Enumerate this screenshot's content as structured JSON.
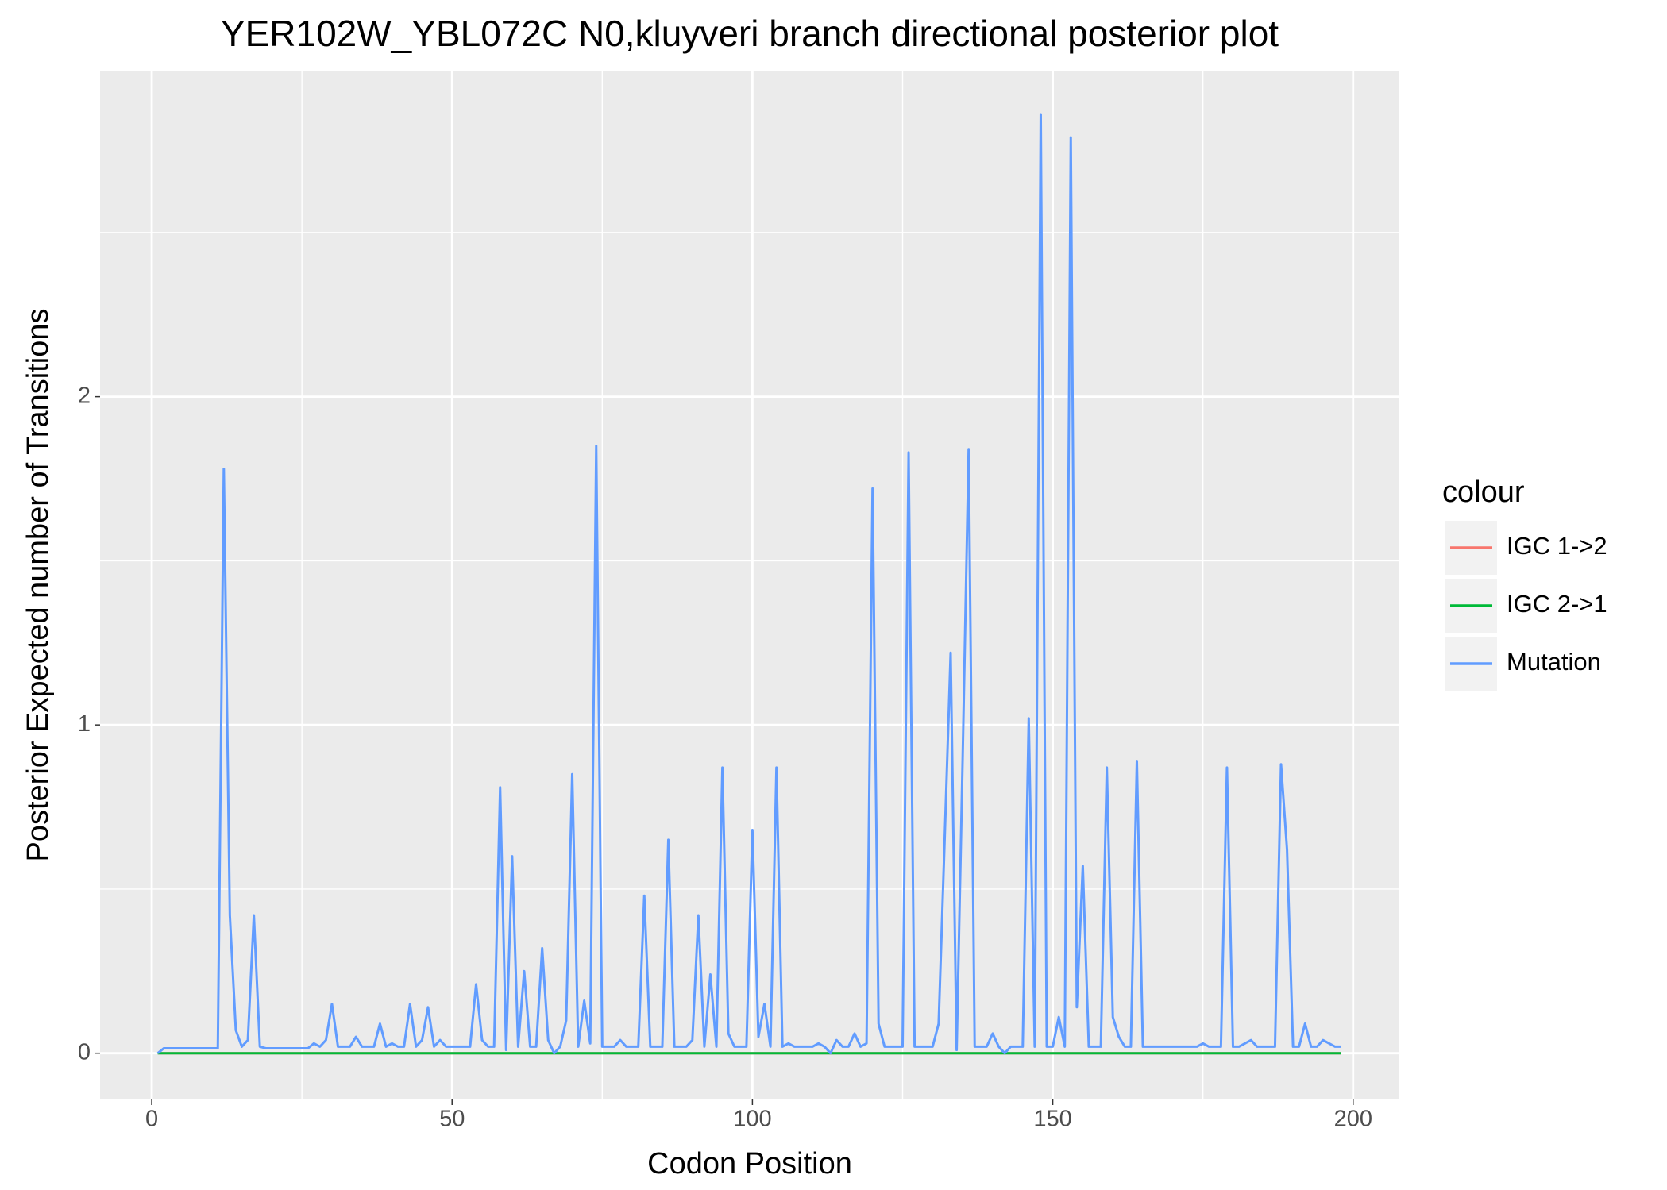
{
  "chart_data": {
    "type": "line",
    "title": "YER102W_YBL072C N0,kluyveri branch directional posterior plot",
    "x_label": "Codon Position",
    "y_label": "Posterior Expected number of Transitions",
    "legend_title": "colour",
    "legend_position": "right",
    "grid": true,
    "xlim": [
      -8.6,
      207.7
    ],
    "ylim": [
      -0.141,
      2.993
    ],
    "xticks": [
      0,
      50,
      100,
      150,
      200
    ],
    "yticks": [
      0,
      1,
      2
    ],
    "x": [
      1,
      2,
      3,
      4,
      5,
      6,
      7,
      8,
      9,
      10,
      11,
      12,
      13,
      14,
      15,
      16,
      17,
      18,
      19,
      20,
      21,
      22,
      23,
      24,
      25,
      26,
      27,
      28,
      29,
      30,
      31,
      32,
      33,
      34,
      35,
      36,
      37,
      38,
      39,
      40,
      41,
      42,
      43,
      44,
      45,
      46,
      47,
      48,
      49,
      50,
      51,
      52,
      53,
      54,
      55,
      56,
      57,
      58,
      59,
      60,
      61,
      62,
      63,
      64,
      65,
      66,
      67,
      68,
      69,
      70,
      71,
      72,
      73,
      74,
      75,
      76,
      77,
      78,
      79,
      80,
      81,
      82,
      83,
      84,
      85,
      86,
      87,
      88,
      89,
      90,
      91,
      92,
      93,
      94,
      95,
      96,
      97,
      98,
      99,
      100,
      101,
      102,
      103,
      104,
      105,
      106,
      107,
      108,
      109,
      110,
      111,
      112,
      113,
      114,
      115,
      116,
      117,
      118,
      119,
      120,
      121,
      122,
      123,
      124,
      125,
      126,
      127,
      128,
      129,
      130,
      131,
      132,
      133,
      134,
      135,
      136,
      137,
      138,
      139,
      140,
      141,
      142,
      143,
      144,
      145,
      146,
      147,
      148,
      149,
      150,
      151,
      152,
      153,
      154,
      155,
      156,
      157,
      158,
      159,
      160,
      161,
      162,
      163,
      164,
      165,
      166,
      167,
      168,
      169,
      170,
      171,
      172,
      173,
      174,
      175,
      176,
      177,
      178,
      179,
      180,
      181,
      182,
      183,
      184,
      185,
      186,
      187,
      188,
      189,
      190,
      191,
      192,
      193,
      194,
      195,
      196,
      197,
      198
    ],
    "series": [
      {
        "name": "IGC 1->2",
        "color": "#F8766D",
        "values": [
          0,
          0,
          0,
          0,
          0,
          0,
          0,
          0,
          0,
          0,
          0,
          0,
          0,
          0,
          0,
          0,
          0,
          0,
          0,
          0,
          0,
          0,
          0,
          0,
          0,
          0,
          0,
          0,
          0,
          0,
          0,
          0,
          0,
          0,
          0,
          0,
          0,
          0,
          0,
          0,
          0,
          0,
          0,
          0,
          0,
          0,
          0,
          0,
          0,
          0,
          0,
          0,
          0,
          0,
          0,
          0,
          0,
          0,
          0,
          0,
          0,
          0,
          0,
          0,
          0,
          0,
          0,
          0,
          0,
          0,
          0,
          0,
          0,
          0,
          0,
          0,
          0,
          0,
          0,
          0,
          0,
          0,
          0,
          0,
          0,
          0,
          0,
          0,
          0,
          0,
          0,
          0,
          0,
          0,
          0,
          0,
          0,
          0,
          0,
          0,
          0,
          0,
          0,
          0,
          0,
          0,
          0,
          0,
          0,
          0,
          0,
          0,
          0,
          0,
          0,
          0,
          0,
          0,
          0,
          0,
          0,
          0,
          0,
          0,
          0,
          0,
          0,
          0,
          0,
          0,
          0,
          0,
          0,
          0,
          0,
          0,
          0,
          0,
          0,
          0,
          0,
          0,
          0,
          0,
          0,
          0,
          0,
          0,
          0,
          0,
          0,
          0,
          0,
          0,
          0,
          0,
          0,
          0,
          0,
          0,
          0,
          0,
          0,
          0,
          0,
          0,
          0,
          0,
          0,
          0,
          0,
          0,
          0,
          0,
          0,
          0,
          0,
          0,
          0,
          0,
          0,
          0,
          0,
          0,
          0,
          0,
          0,
          0,
          0,
          0,
          0,
          0,
          0,
          0,
          0,
          0,
          0,
          0
        ]
      },
      {
        "name": "IGC 2->1",
        "color": "#00BA38",
        "values": [
          0,
          0,
          0,
          0,
          0,
          0,
          0,
          0,
          0,
          0,
          0,
          0,
          0,
          0,
          0,
          0,
          0,
          0,
          0,
          0,
          0,
          0,
          0,
          0,
          0,
          0,
          0,
          0,
          0,
          0,
          0,
          0,
          0,
          0,
          0,
          0,
          0,
          0,
          0,
          0,
          0,
          0,
          0,
          0,
          0,
          0,
          0,
          0,
          0,
          0,
          0,
          0,
          0,
          0,
          0,
          0,
          0,
          0,
          0,
          0,
          0,
          0,
          0,
          0,
          0,
          0,
          0,
          0,
          0,
          0,
          0,
          0,
          0,
          0,
          0,
          0,
          0,
          0,
          0,
          0,
          0,
          0,
          0,
          0,
          0,
          0,
          0,
          0,
          0,
          0,
          0,
          0,
          0,
          0,
          0,
          0,
          0,
          0,
          0,
          0,
          0,
          0,
          0,
          0,
          0,
          0,
          0,
          0,
          0,
          0,
          0,
          0,
          0,
          0,
          0,
          0,
          0,
          0,
          0,
          0,
          0,
          0,
          0,
          0,
          0,
          0,
          0,
          0,
          0,
          0,
          0,
          0,
          0,
          0,
          0,
          0,
          0,
          0,
          0,
          0,
          0,
          0,
          0,
          0,
          0,
          0,
          0,
          0,
          0,
          0,
          0,
          0,
          0,
          0,
          0,
          0,
          0,
          0,
          0,
          0,
          0,
          0,
          0,
          0,
          0,
          0,
          0,
          0,
          0,
          0,
          0,
          0,
          0,
          0,
          0,
          0,
          0,
          0,
          0,
          0,
          0,
          0,
          0,
          0,
          0,
          0,
          0,
          0,
          0,
          0,
          0,
          0,
          0,
          0,
          0,
          0,
          0,
          0
        ]
      },
      {
        "name": "Mutation",
        "color": "#619CFF",
        "values": [
          0,
          0.015,
          0.015,
          0.015,
          0.015,
          0.015,
          0.015,
          0.015,
          0.015,
          0.015,
          0.015,
          1.78,
          0.42,
          0.07,
          0.02,
          0.04,
          0.42,
          0.02,
          0.015,
          0.015,
          0.015,
          0.015,
          0.015,
          0.015,
          0.015,
          0.015,
          0.03,
          0.02,
          0.04,
          0.15,
          0.02,
          0.02,
          0.02,
          0.05,
          0.02,
          0.02,
          0.02,
          0.09,
          0.02,
          0.03,
          0.02,
          0.02,
          0.15,
          0.02,
          0.04,
          0.14,
          0.02,
          0.04,
          0.02,
          0.02,
          0.02,
          0.02,
          0.02,
          0.21,
          0.04,
          0.02,
          0.02,
          0.81,
          0.01,
          0.6,
          0.02,
          0.25,
          0.02,
          0.02,
          0.32,
          0.04,
          0,
          0.02,
          0.1,
          0.85,
          0.02,
          0.16,
          0.03,
          1.85,
          0.02,
          0.02,
          0.02,
          0.04,
          0.02,
          0.02,
          0.02,
          0.48,
          0.02,
          0.02,
          0.02,
          0.65,
          0.02,
          0.02,
          0.02,
          0.04,
          0.42,
          0.02,
          0.24,
          0.02,
          0.87,
          0.06,
          0.02,
          0.02,
          0.02,
          0.68,
          0.05,
          0.15,
          0.02,
          0.87,
          0.02,
          0.03,
          0.02,
          0.02,
          0.02,
          0.02,
          0.03,
          0.02,
          0,
          0.04,
          0.02,
          0.02,
          0.06,
          0.02,
          0.03,
          1.72,
          0.09,
          0.02,
          0.02,
          0.02,
          0.02,
          1.83,
          0.02,
          0.02,
          0.02,
          0.02,
          0.09,
          0.65,
          1.22,
          0.01,
          0.9,
          1.84,
          0.02,
          0.02,
          0.02,
          0.06,
          0.02,
          0,
          0.02,
          0.02,
          0.02,
          1.02,
          0.02,
          2.86,
          0.02,
          0.02,
          0.11,
          0.02,
          2.79,
          0.14,
          0.57,
          0.02,
          0.02,
          0.02,
          0.87,
          0.11,
          0.05,
          0.02,
          0.02,
          0.89,
          0.02,
          0.02,
          0.02,
          0.02,
          0.02,
          0.02,
          0.02,
          0.02,
          0.02,
          0.02,
          0.03,
          0.02,
          0.02,
          0.02,
          0.87,
          0.02,
          0.02,
          0.03,
          0.04,
          0.02,
          0.02,
          0.02,
          0.02,
          0.88,
          0.62,
          0.02,
          0.02,
          0.09,
          0.02,
          0.02,
          0.04,
          0.03,
          0.02,
          0.02
        ]
      }
    ]
  }
}
